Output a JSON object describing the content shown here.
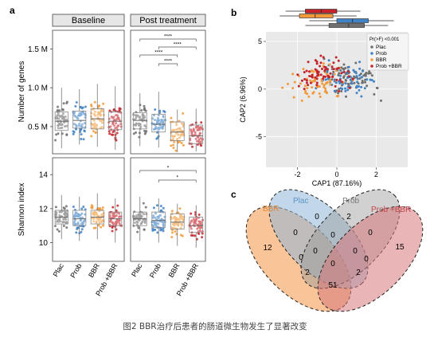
{
  "panels": {
    "a": {
      "label": "a",
      "facets": [
        "Baseline",
        "Post treatment"
      ],
      "groups": [
        "Plac",
        "Prob",
        "BBR",
        "Prob +BBR"
      ],
      "colors": {
        "Plac": "#6f6f6f",
        "Prob": "#3f83c6",
        "BBR": "#f29a3a",
        "Prob +BBR": "#c5232b"
      }
    },
    "b": {
      "label": "b",
      "legend_title": "Pr(>F) <0.001",
      "legend": [
        "Plac",
        "Prob",
        "BBR",
        "Prob +BBR"
      ]
    },
    "c": {
      "label": "c"
    }
  },
  "chart_data": [
    {
      "type": "box",
      "panel": "a-top",
      "ylabel": "Number of genes",
      "yticks": [
        "1.5 M",
        "1.0 M",
        "0.5 M"
      ],
      "ytick_values": [
        1.5,
        1.0,
        0.5
      ],
      "ylim": [
        0.15,
        1.72
      ],
      "categories": [
        "Plac",
        "Prob",
        "BBR",
        "Prob +BBR"
      ],
      "series": [
        {
          "name": "Baseline",
          "median": [
            0.57,
            0.58,
            0.6,
            0.57
          ],
          "q1": [
            0.45,
            0.48,
            0.47,
            0.46
          ],
          "q3": [
            0.69,
            0.7,
            0.73,
            0.69
          ],
          "wlo": [
            0.22,
            0.27,
            0.24,
            0.2
          ],
          "whi": [
            1.0,
            0.98,
            1.05,
            1.02
          ]
        },
        {
          "name": "Post treatment",
          "median": [
            0.58,
            0.53,
            0.43,
            0.38
          ],
          "q1": [
            0.47,
            0.43,
            0.32,
            0.28
          ],
          "q3": [
            0.68,
            0.66,
            0.56,
            0.52
          ],
          "wlo": [
            0.25,
            0.23,
            0.17,
            0.18
          ],
          "whi": [
            0.93,
            0.95,
            0.72,
            0.73
          ]
        }
      ],
      "significance": [
        "****",
        "****",
        "****",
        "****"
      ]
    },
    {
      "type": "box",
      "panel": "a-bottom",
      "ylabel": "Shannon index",
      "yticks": [
        "14",
        "12",
        "10"
      ],
      "ytick_values": [
        14,
        12,
        10
      ],
      "ylim": [
        8.9,
        14.9
      ],
      "categories": [
        "Plac",
        "Prob",
        "BBR",
        "Prob +BBR"
      ],
      "series": [
        {
          "name": "Baseline",
          "median": [
            11.5,
            11.4,
            11.5,
            11.4
          ],
          "q1": [
            11.1,
            11.0,
            11.1,
            11.0
          ],
          "q3": [
            11.9,
            11.9,
            11.9,
            11.8
          ],
          "wlo": [
            10.2,
            10.1,
            10.2,
            10.0
          ],
          "whi": [
            12.8,
            12.7,
            12.9,
            12.6
          ]
        },
        {
          "name": "Post treatment",
          "median": [
            11.4,
            11.3,
            11.2,
            11.0
          ],
          "q1": [
            11.0,
            10.9,
            10.8,
            10.6
          ],
          "q3": [
            11.8,
            11.8,
            11.7,
            11.5
          ],
          "wlo": [
            10.1,
            10.0,
            9.8,
            9.7
          ],
          "whi": [
            12.7,
            12.6,
            12.3,
            12.2
          ]
        }
      ],
      "significance": [
        "*",
        "*"
      ]
    },
    {
      "type": "scatter",
      "panel": "b",
      "xlabel": "CAP1 (87.16%)",
      "ylabel": "CAP2 (6.96%)",
      "xticks": [
        "-2",
        "0",
        "2"
      ],
      "xtick_values": [
        -2,
        0,
        2
      ],
      "yticks": [
        "5",
        "0",
        "-5"
      ],
      "ytick_values": [
        5,
        0,
        -5
      ],
      "xlim": [
        -3.6,
        3.6
      ],
      "ylim": [
        -8.2,
        6.0
      ],
      "groups": [
        "Plac",
        "Prob",
        "BBR",
        "Prob +BBR"
      ],
      "group_centers": [
        [
          0.8,
          1.2
        ],
        [
          0.5,
          0.9
        ],
        [
          -1.0,
          0.8
        ],
        [
          -0.6,
          1.6
        ]
      ],
      "top_boxplots": [
        {
          "name": "Prob +BBR",
          "q1": -1.6,
          "median": -0.8,
          "q3": 0.0,
          "wlo": -2.6,
          "whi": 1.2
        },
        {
          "name": "BBR",
          "q1": -1.9,
          "median": -1.1,
          "q3": -0.2,
          "wlo": -2.9,
          "whi": 1.0
        },
        {
          "name": "Prob",
          "q1": 0.0,
          "median": 0.8,
          "q3": 1.6,
          "wlo": -1.4,
          "whi": 2.9
        },
        {
          "name": "Plac",
          "q1": -0.4,
          "median": 0.6,
          "q3": 1.4,
          "wlo": -1.6,
          "whi": 2.6
        }
      ]
    },
    {
      "type": "venn",
      "panel": "c",
      "sets": [
        "BBR",
        "Plac",
        "Prob",
        "Prob +BBR"
      ],
      "colors": {
        "BBR": "#f4a461",
        "Plac": "#8fb6d8",
        "Prob": "#9a9a9a",
        "Prob +BBR": "#d7797b"
      },
      "regions": {
        "BBR": "12",
        "Plac": "0",
        "Prob": "2",
        "Prob +BBR": "15",
        "BBR&Plac": "0",
        "Plac&Prob": "0",
        "Prob&Prob +BBR": "0",
        "BBR&Prob": "0",
        "Plac&Prob +BBR": "0",
        "BBR&Plac&Prob": "0",
        "Plac&Prob&Prob +BBR": "0",
        "BBR&Plac&Prob +BBR": "2",
        "BBR&Prob&Prob +BBR": "2",
        "BBR&Prob +BBR": "51",
        "all": "0"
      }
    }
  ],
  "caption": "图2 BBR治疗后患者的肠道微生物发生了显著改变"
}
